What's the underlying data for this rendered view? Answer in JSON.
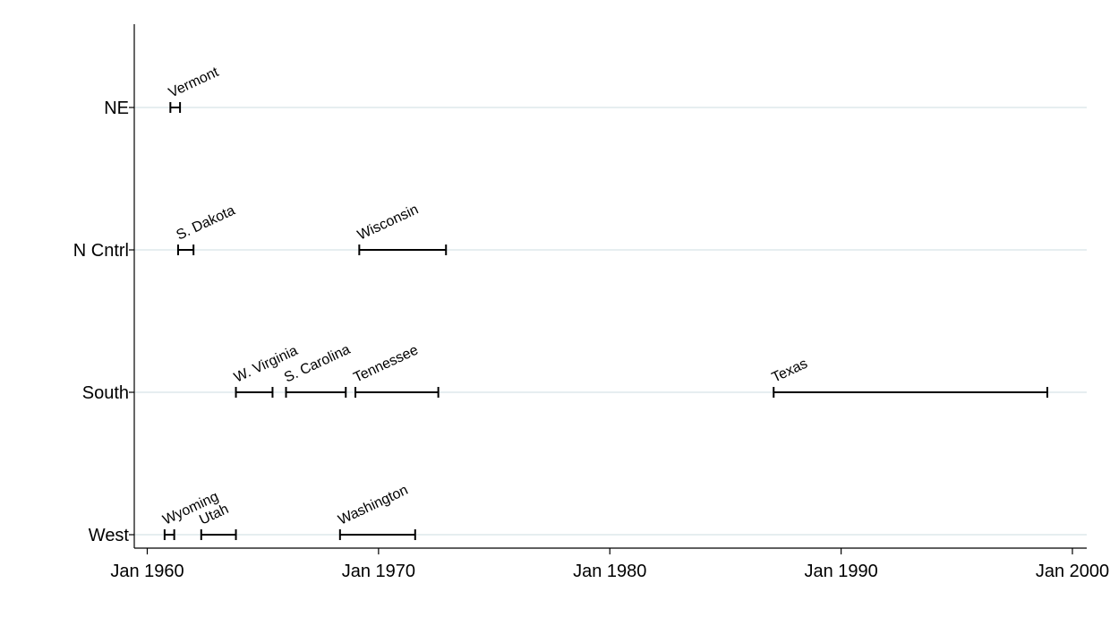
{
  "chart_data": {
    "type": "range",
    "grid": true,
    "xlim": [
      "1959-09-01",
      "2001-01-01"
    ],
    "x_ticks": [
      {
        "value": "1960-01-01",
        "label": "Jan 1960"
      },
      {
        "value": "1970-01-01",
        "label": "Jan 1970"
      },
      {
        "value": "1980-01-01",
        "label": "Jan 1980"
      },
      {
        "value": "1990-01-01",
        "label": "Jan 1990"
      },
      {
        "value": "2000-01-01",
        "label": "Jan 2000"
      }
    ],
    "categories": [
      "NE",
      "N Cntrl",
      "South",
      "West"
    ],
    "ranges": [
      {
        "category": "NE",
        "label": "Vermont",
        "start": "1961-01",
        "end": "1961-06"
      },
      {
        "category": "N Cntrl",
        "label": "S. Dakota",
        "start": "1961-05",
        "end": "1962-00"
      },
      {
        "category": "N Cntrl",
        "label": "Wisconsin",
        "start": "1969-03",
        "end": "1972-12"
      },
      {
        "category": "South",
        "label": "W. Virginia",
        "start": "1963-11",
        "end": "1965-06"
      },
      {
        "category": "South",
        "label": "S. Carolina",
        "start": "1966-01",
        "end": "1968-08"
      },
      {
        "category": "South",
        "label": "Tennessee",
        "start": "1969-01",
        "end": "1972-08"
      },
      {
        "category": "South",
        "label": "Texas",
        "start": "1987-02",
        "end": "1998-12"
      },
      {
        "category": "West",
        "label": "Wyoming",
        "start": "1960-10",
        "end": "1961-03"
      },
      {
        "category": "West",
        "label": "Utah",
        "start": "1962-05",
        "end": "1963-11"
      },
      {
        "category": "West",
        "label": "Washington",
        "start": "1968-05",
        "end": "1971-08"
      }
    ]
  }
}
